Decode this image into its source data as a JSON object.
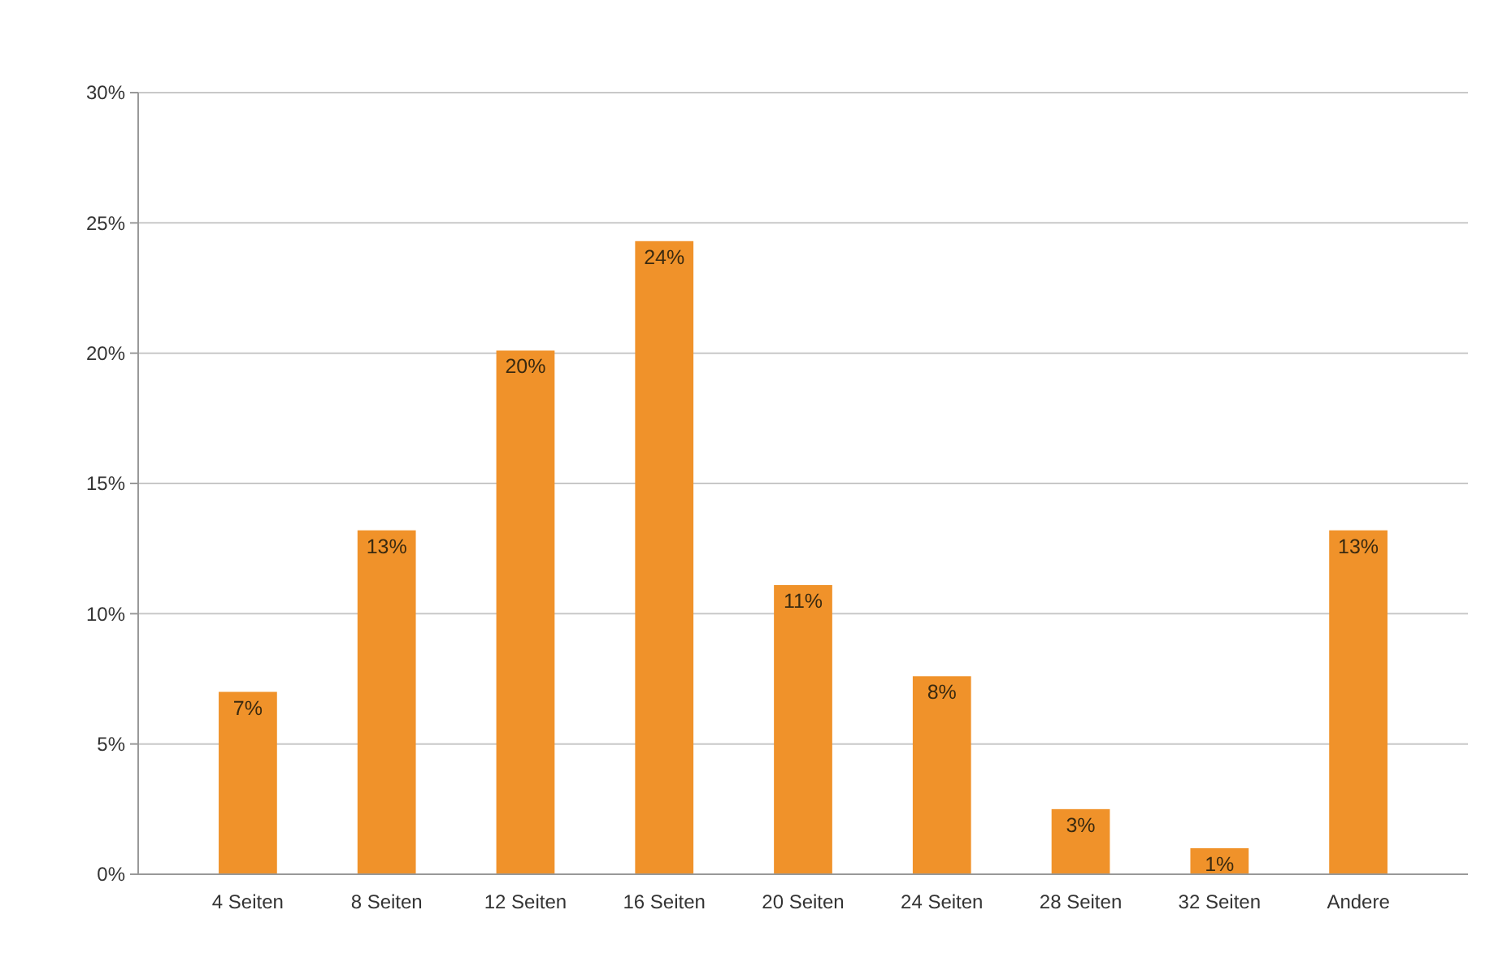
{
  "chart_data": {
    "type": "bar",
    "categories": [
      "4 Seiten",
      "8 Seiten",
      "12 Seiten",
      "16 Seiten",
      "20 Seiten",
      "24 Seiten",
      "28 Seiten",
      "32 Seiten",
      "Andere"
    ],
    "values": [
      7,
      13.2,
      20.1,
      24.3,
      11.1,
      7.6,
      2.5,
      1,
      13.2
    ],
    "value_labels": [
      "7%",
      "13%",
      "20%",
      "24%",
      "11%",
      "8%",
      "3%",
      "1%",
      "13%"
    ],
    "color": "#f0922a",
    "ylim": [
      0,
      30
    ],
    "yticks": [
      {
        "value": 0,
        "label": "0%"
      },
      {
        "value": 5,
        "label": "5%"
      },
      {
        "value": 10,
        "label": "10%"
      },
      {
        "value": 15,
        "label": "15%"
      },
      {
        "value": 20,
        "label": "20%"
      },
      {
        "value": 25,
        "label": "25%"
      },
      {
        "value": 30,
        "label": "30%"
      }
    ],
    "grid": "y"
  }
}
